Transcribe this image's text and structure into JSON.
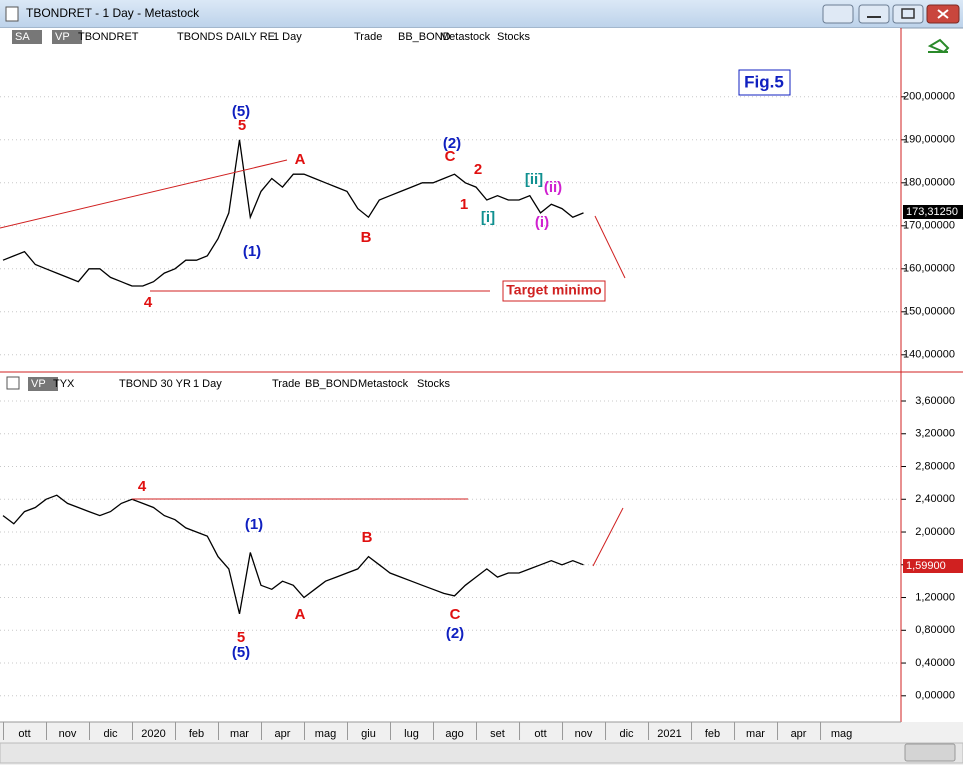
{
  "window": {
    "title": "TBONDRET - 1 Day - Metastock",
    "top_toolbar": [
      "SA",
      "VP",
      "TBONDRET",
      "TBONDS DAILY RE",
      "1 Day",
      "Trade",
      "BB_BOND",
      "Metastock",
      "Stocks"
    ],
    "bottom_toolbar": [
      "VP",
      "TYX",
      "TBOND 30 YR",
      "1 Day",
      "Trade",
      "BB_BOND",
      "Metastock",
      "Stocks"
    ]
  },
  "chart_data": [
    {
      "type": "line",
      "figure_label": "Fig.5",
      "target_label": "Target minimo",
      "last_label": "173,31250",
      "color": "#000000",
      "grid": true,
      "x": [
        0,
        0.25,
        0.5,
        0.75,
        1,
        1.25,
        1.5,
        1.75,
        2,
        2.25,
        2.5,
        2.75,
        3,
        3.25,
        3.5,
        3.75,
        4,
        4.25,
        4.5,
        4.75,
        5,
        5.25,
        5.5,
        5.75,
        6,
        6.25,
        6.5,
        6.75,
        7,
        7.25,
        7.5,
        7.75,
        8,
        8.25,
        8.5,
        8.75,
        9,
        9.25,
        9.5,
        9.75,
        10,
        10.25,
        10.5,
        10.75,
        11,
        11.25,
        11.5,
        11.75,
        12,
        12.25,
        12.5,
        12.75,
        13,
        13.25,
        13.5
      ],
      "values": [
        162,
        163,
        164,
        161,
        160,
        159,
        158,
        157,
        160,
        160,
        158,
        157,
        156,
        156,
        157,
        159,
        160,
        162,
        162,
        163,
        167,
        173,
        190,
        172,
        178,
        181,
        179,
        182,
        182,
        181,
        180,
        179,
        178,
        174,
        172,
        176,
        177,
        178,
        179,
        180,
        180,
        181,
        182,
        180,
        179,
        176,
        177,
        176,
        176,
        177,
        173,
        175,
        174,
        172,
        173
      ],
      "xlim": [
        -0.07,
        20.86
      ],
      "ylim": [
        136,
        216
      ],
      "yticks": [
        {
          "value": 140,
          "label": "140,00000"
        },
        {
          "value": 150,
          "label": "150,00000"
        },
        {
          "value": 160,
          "label": "160,00000"
        },
        {
          "value": 170,
          "label": "170,00000"
        },
        {
          "value": 180,
          "label": "180,00000"
        },
        {
          "value": 190,
          "label": "190,00000"
        },
        {
          "value": 200,
          "label": "200,00000"
        }
      ],
      "annotations": [
        {
          "text": "(5)",
          "color": "#1020c0"
        },
        {
          "text": "5",
          "color": "#e01010"
        },
        {
          "text": "(1)",
          "color": "#1020c0"
        },
        {
          "text": "A",
          "color": "#e01010"
        },
        {
          "text": "B",
          "color": "#e01010"
        },
        {
          "text": "(2)",
          "color": "#1020c0"
        },
        {
          "text": "C",
          "color": "#e01010"
        },
        {
          "text": "2",
          "color": "#e01010"
        },
        {
          "text": "1",
          "color": "#e01010"
        },
        {
          "text": "[i]",
          "color": "#109090"
        },
        {
          "text": "[ii]",
          "color": "#109090"
        },
        {
          "text": "(ii)",
          "color": "#d020d0"
        },
        {
          "text": "(i)",
          "color": "#d020d0"
        },
        {
          "text": "4",
          "color": "#e01010"
        }
      ]
    },
    {
      "type": "line",
      "last_label": "1,59900",
      "color": "#000000",
      "grid": true,
      "x": [
        0,
        0.25,
        0.5,
        0.75,
        1,
        1.25,
        1.5,
        1.75,
        2,
        2.25,
        2.5,
        2.75,
        3,
        3.25,
        3.5,
        3.75,
        4,
        4.25,
        4.5,
        4.75,
        5,
        5.25,
        5.5,
        5.75,
        6,
        6.25,
        6.5,
        6.75,
        7,
        7.25,
        7.5,
        7.75,
        8,
        8.25,
        8.5,
        8.75,
        9,
        9.25,
        9.5,
        9.75,
        10,
        10.25,
        10.5,
        10.75,
        11,
        11.25,
        11.5,
        11.75,
        12,
        12.25,
        12.5,
        12.75,
        13,
        13.25,
        13.5
      ],
      "values": [
        2.2,
        2.1,
        2.25,
        2.3,
        2.4,
        2.45,
        2.35,
        2.3,
        2.25,
        2.2,
        2.25,
        2.35,
        2.4,
        2.35,
        2.3,
        2.2,
        2.15,
        2.05,
        2.0,
        1.95,
        1.7,
        1.55,
        1.0,
        1.75,
        1.35,
        1.3,
        1.4,
        1.35,
        1.2,
        1.3,
        1.4,
        1.45,
        1.5,
        1.55,
        1.7,
        1.6,
        1.5,
        1.45,
        1.4,
        1.35,
        1.3,
        1.25,
        1.22,
        1.35,
        1.45,
        1.55,
        1.45,
        1.5,
        1.5,
        1.55,
        1.6,
        1.65,
        1.6,
        1.65,
        1.6
      ],
      "xlim": [
        -0.07,
        20.86
      ],
      "ylim": [
        -0.32,
        3.71
      ],
      "xticks": [
        {
          "value": 0.5,
          "label": "ott"
        },
        {
          "value": 1.5,
          "label": "nov"
        },
        {
          "value": 2.5,
          "label": "dic"
        },
        {
          "value": 3.5,
          "label": "2020"
        },
        {
          "value": 4.5,
          "label": "feb"
        },
        {
          "value": 5.5,
          "label": "mar"
        },
        {
          "value": 6.5,
          "label": "apr"
        },
        {
          "value": 7.5,
          "label": "mag"
        },
        {
          "value": 8.5,
          "label": "giu"
        },
        {
          "value": 9.5,
          "label": "lug"
        },
        {
          "value": 10.5,
          "label": "ago"
        },
        {
          "value": 11.5,
          "label": "set"
        },
        {
          "value": 12.5,
          "label": "ott"
        },
        {
          "value": 13.5,
          "label": "nov"
        },
        {
          "value": 14.5,
          "label": "dic"
        },
        {
          "value": 15.5,
          "label": "2021"
        },
        {
          "value": 16.5,
          "label": "feb"
        },
        {
          "value": 17.5,
          "label": "mar"
        },
        {
          "value": 18.5,
          "label": "apr"
        },
        {
          "value": 19.5,
          "label": "mag"
        }
      ],
      "yticks": [
        {
          "value": 0,
          "label": "0,00000"
        },
        {
          "value": 0.4,
          "label": "0,40000"
        },
        {
          "value": 0.8,
          "label": "0,80000"
        },
        {
          "value": 1.2,
          "label": "1,20000"
        },
        {
          "value": 1.6,
          "label": "1,60000"
        },
        {
          "value": 2.0,
          "label": "2,00000"
        },
        {
          "value": 2.4,
          "label": "2,40000"
        },
        {
          "value": 2.8,
          "label": "2,80000"
        },
        {
          "value": 3.2,
          "label": "3,20000"
        },
        {
          "value": 3.6,
          "label": "3,60000"
        }
      ],
      "annotations": [
        {
          "text": "4",
          "color": "#e01010"
        },
        {
          "text": "(1)",
          "color": "#1020c0"
        },
        {
          "text": "B",
          "color": "#e01010"
        },
        {
          "text": "A",
          "color": "#e01010"
        },
        {
          "text": "C",
          "color": "#e01010"
        },
        {
          "text": "(2)",
          "color": "#1020c0"
        },
        {
          "text": "5",
          "color": "#e01010"
        },
        {
          "text": "(5)",
          "color": "#1020c0"
        }
      ]
    }
  ]
}
